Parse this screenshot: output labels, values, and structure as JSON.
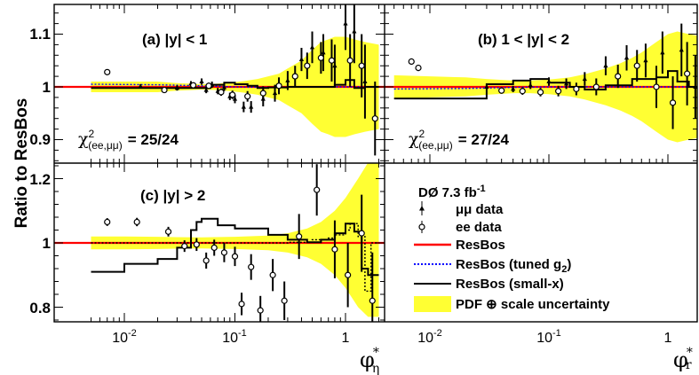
{
  "chart_data": [
    {
      "id": "a",
      "type": "scatter",
      "label": "(a) |y| < 1",
      "chi2_label": "(ee,μμ)",
      "chi2_value": "= 25/24",
      "xlim": [
        0.005,
        2.0
      ],
      "ylim": [
        0.86,
        1.15
      ],
      "log_x": true,
      "uncertainty_band": {
        "x": [
          0.005,
          0.01,
          0.02,
          0.03,
          0.04,
          0.05,
          0.07,
          0.09,
          0.12,
          0.16,
          0.2,
          0.25,
          0.3,
          0.4,
          0.5,
          0.6,
          0.7,
          0.8,
          1.0,
          1.2,
          1.5,
          2.0
        ],
        "lo": [
          0.99,
          0.99,
          0.99,
          0.993,
          0.994,
          0.995,
          0.994,
          0.992,
          0.989,
          0.985,
          0.98,
          0.975,
          0.965,
          0.95,
          0.93,
          0.915,
          0.91,
          0.905,
          0.905,
          0.91,
          0.915,
          0.92
        ],
        "hi": [
          1.01,
          1.01,
          1.01,
          1.007,
          1.006,
          1.005,
          1.006,
          1.008,
          1.011,
          1.015,
          1.02,
          1.025,
          1.035,
          1.05,
          1.07,
          1.085,
          1.09,
          1.095,
          1.095,
          1.09,
          1.085,
          1.08
        ]
      },
      "resbos": 1.0,
      "tuned_g2": {
        "x": [
          0.005,
          0.02,
          0.05,
          0.1,
          0.2,
          0.5,
          1.0,
          2.0
        ],
        "y": [
          1.005,
          1.004,
          1.002,
          1.0,
          0.999,
          1.0,
          1.0,
          1.0
        ]
      },
      "small_x": {
        "edges": [
          0.005,
          0.06,
          0.08,
          0.1,
          0.13,
          0.16,
          0.2,
          0.3,
          0.5,
          0.8,
          1.0,
          1.2,
          1.5,
          2.0
        ],
        "y": [
          0.998,
          1.004,
          1.008,
          1.005,
          1.002,
          0.998,
          0.999,
          1.0,
          1.0,
          1.004,
          1.013,
          0.998,
          1.0
        ]
      },
      "mm_data": [
        [
          0.014,
          1.001,
          0.004
        ],
        [
          0.03,
          0.998,
          0.005
        ],
        [
          0.04,
          1.006,
          0.005
        ],
        [
          0.05,
          1.01,
          0.006
        ],
        [
          0.055,
          0.994,
          0.006
        ],
        [
          0.062,
          1.004,
          0.006
        ],
        [
          0.07,
          0.992,
          0.006
        ],
        [
          0.08,
          0.999,
          0.007
        ],
        [
          0.09,
          0.982,
          0.007
        ],
        [
          0.1,
          0.977,
          0.008
        ],
        [
          0.12,
          0.962,
          0.01
        ],
        [
          0.14,
          0.962,
          0.011
        ],
        [
          0.18,
          0.977,
          0.014
        ],
        [
          0.23,
          0.988,
          0.016
        ],
        [
          0.3,
          1.012,
          0.018
        ],
        [
          0.4,
          1.052,
          0.022
        ],
        [
          0.5,
          1.075,
          0.03
        ],
        [
          0.63,
          1.065,
          0.035
        ],
        [
          0.8,
          1.04,
          0.04
        ],
        [
          1.0,
          1.12,
          0.05
        ],
        [
          1.2,
          1.105,
          0.06
        ],
        [
          1.5,
          1.01,
          0.07
        ]
      ],
      "ee_data": [
        [
          0.007,
          1.028,
          0.005
        ],
        [
          0.023,
          0.994,
          0.005
        ],
        [
          0.042,
          1.003,
          0.005
        ],
        [
          0.058,
          1.002,
          0.006
        ],
        [
          0.075,
          0.99,
          0.007
        ],
        [
          0.095,
          0.985,
          0.008
        ],
        [
          0.13,
          0.982,
          0.01
        ],
        [
          0.18,
          0.988,
          0.013
        ],
        [
          0.25,
          1.002,
          0.016
        ],
        [
          0.35,
          1.02,
          0.02
        ],
        [
          0.45,
          1.04,
          0.025
        ],
        [
          0.6,
          1.055,
          0.03
        ],
        [
          0.75,
          1.05,
          0.04
        ],
        [
          1.1,
          1.05,
          0.05
        ],
        [
          1.4,
          1.04,
          0.06
        ],
        [
          1.85,
          0.94,
          0.07
        ]
      ]
    },
    {
      "id": "b",
      "type": "scatter",
      "label": "(b) 1 < |y| < 2",
      "chi2_label": "(ee,μμ)",
      "chi2_value": "= 27/24",
      "xlim": [
        0.005,
        2.0
      ],
      "ylim": [
        0.86,
        1.15
      ],
      "log_x": true,
      "uncertainty_band": {
        "x": [
          0.005,
          0.01,
          0.02,
          0.03,
          0.05,
          0.07,
          0.1,
          0.15,
          0.2,
          0.3,
          0.4,
          0.5,
          0.6,
          0.8,
          1.0,
          1.2,
          1.5,
          2.0
        ],
        "lo": [
          0.978,
          0.98,
          0.982,
          0.985,
          0.988,
          0.988,
          0.986,
          0.982,
          0.976,
          0.965,
          0.955,
          0.945,
          0.935,
          0.915,
          0.9,
          0.895,
          0.9,
          0.905
        ],
        "hi": [
          1.022,
          1.02,
          1.018,
          1.015,
          1.012,
          1.012,
          1.014,
          1.018,
          1.024,
          1.035,
          1.045,
          1.055,
          1.065,
          1.085,
          1.1,
          1.105,
          1.1,
          1.095
        ]
      },
      "resbos": 1.0,
      "tuned_g2": {
        "x": [
          0.005,
          0.02,
          0.05,
          0.1,
          0.2,
          0.5,
          1.0,
          2.0
        ],
        "y": [
          0.996,
          0.997,
          0.999,
          1.0,
          1.0,
          1.0,
          1.0,
          1.0
        ]
      },
      "small_x": {
        "edges": [
          0.005,
          0.03,
          0.05,
          0.07,
          0.1,
          0.15,
          0.2,
          0.3,
          0.5,
          0.8,
          1.0,
          1.2,
          1.5,
          2.0
        ],
        "y": [
          0.978,
          1.005,
          1.012,
          1.015,
          1.008,
          1.0,
          0.995,
          1.003,
          1.015,
          1.018,
          1.03,
          1.01,
          1.0
        ]
      },
      "mm_data": [
        [
          0.03,
          1.0,
          0.005
        ],
        [
          0.05,
          0.996,
          0.006
        ],
        [
          0.07,
          1.003,
          0.007
        ],
        [
          0.1,
          1.01,
          0.008
        ],
        [
          0.14,
          1.006,
          0.01
        ],
        [
          0.2,
          1.015,
          0.013
        ],
        [
          0.3,
          1.04,
          0.018
        ],
        [
          0.45,
          1.055,
          0.024
        ],
        [
          0.65,
          1.05,
          0.032
        ],
        [
          0.9,
          1.065,
          0.04
        ],
        [
          1.3,
          1.07,
          0.05
        ],
        [
          1.7,
          1.0,
          0.06
        ]
      ],
      "ee_data": [
        [
          0.007,
          1.048,
          0.006
        ],
        [
          0.008,
          1.036,
          0.006
        ],
        [
          0.04,
          0.993,
          0.006
        ],
        [
          0.06,
          0.992,
          0.007
        ],
        [
          0.085,
          0.99,
          0.008
        ],
        [
          0.12,
          0.992,
          0.01
        ],
        [
          0.17,
          0.996,
          0.012
        ],
        [
          0.25,
          1.0,
          0.016
        ],
        [
          0.38,
          1.02,
          0.022
        ],
        [
          0.55,
          1.04,
          0.03
        ],
        [
          0.8,
          1.0,
          0.04
        ],
        [
          1.1,
          0.97,
          0.05
        ],
        [
          1.45,
          1.025,
          0.06
        ]
      ]
    },
    {
      "id": "c",
      "type": "scatter",
      "label": "(c) |y| > 2",
      "xlim": [
        0.005,
        2.0
      ],
      "ylim": [
        0.77,
        1.25
      ],
      "log_x": true,
      "uncertainty_band": {
        "x": [
          0.005,
          0.01,
          0.02,
          0.03,
          0.05,
          0.1,
          0.2,
          0.3,
          0.45,
          0.6,
          0.8,
          1.0,
          1.3,
          1.6,
          2.0
        ],
        "lo": [
          0.98,
          0.98,
          0.981,
          0.982,
          0.983,
          0.981,
          0.977,
          0.97,
          0.955,
          0.935,
          0.9,
          0.86,
          0.8,
          0.77,
          0.77
        ],
        "hi": [
          1.02,
          1.02,
          1.019,
          1.018,
          1.017,
          1.019,
          1.023,
          1.03,
          1.045,
          1.065,
          1.1,
          1.14,
          1.2,
          1.25,
          1.25
        ]
      },
      "resbos": 1.0,
      "tuned_g2": {
        "edges": [
          0.005,
          0.3,
          0.5,
          0.7,
          0.8,
          1.0,
          1.1,
          1.3,
          1.5,
          1.7,
          2.0
        ],
        "y": [
          1.0,
          1.002,
          1.01,
          1.015,
          1.025,
          1.04,
          1.06,
          1.02,
          0.85,
          1.0
        ]
      },
      "small_x": {
        "edges": [
          0.005,
          0.01,
          0.02,
          0.03,
          0.04,
          0.045,
          0.05,
          0.07,
          0.1,
          0.2,
          0.3,
          0.45,
          0.6,
          0.8,
          1.0,
          1.2,
          1.4,
          1.6,
          2.0
        ],
        "y": [
          0.91,
          0.935,
          0.95,
          0.985,
          1.04,
          1.065,
          1.075,
          1.055,
          1.045,
          1.025,
          1.01,
          1.002,
          1.01,
          1.03,
          1.06,
          1.035,
          0.92,
          0.9
        ]
      },
      "ee_data": [
        [
          0.007,
          1.065,
          0.012
        ],
        [
          0.013,
          1.065,
          0.013
        ],
        [
          0.025,
          1.035,
          0.015
        ],
        [
          0.035,
          0.99,
          0.018
        ],
        [
          0.045,
          0.995,
          0.02
        ],
        [
          0.055,
          0.945,
          0.025
        ],
        [
          0.065,
          0.985,
          0.025
        ],
        [
          0.08,
          0.97,
          0.03
        ],
        [
          0.1,
          0.958,
          0.03
        ],
        [
          0.115,
          0.81,
          0.035
        ],
        [
          0.14,
          0.925,
          0.04
        ],
        [
          0.17,
          0.79,
          0.045
        ],
        [
          0.22,
          0.9,
          0.05
        ],
        [
          0.28,
          0.82,
          0.06
        ],
        [
          0.38,
          1.02,
          0.07
        ],
        [
          0.55,
          1.165,
          0.08
        ],
        [
          0.8,
          0.98,
          0.09
        ],
        [
          1.05,
          0.9,
          0.1
        ],
        [
          1.4,
          1.03,
          0.12
        ],
        [
          1.75,
          0.82,
          0.15
        ]
      ]
    }
  ],
  "y_axis_title": "Ratio to ResBos",
  "y_ticks_top": [
    "0.9",
    "1",
    "1.1"
  ],
  "y_ticks_bottom": [
    "0.8",
    "1",
    "1.2"
  ],
  "x_ticks": [
    {
      "value": 0.01,
      "base": "10",
      "exp": "-2"
    },
    {
      "value": 0.1,
      "base": "10",
      "exp": "-1"
    },
    {
      "value": 1.0,
      "base": "1",
      "exp": ""
    }
  ],
  "x_title_left": {
    "main": "φ",
    "sup": "*",
    "sub": "η"
  },
  "x_title_right": {
    "main": "φ",
    "sup": "*",
    "sub": "r"
  },
  "legend": {
    "title_main": "DØ 7.3 fb",
    "title_sup": "-1",
    "items": [
      {
        "label": "μμ data"
      },
      {
        "label": "ee data"
      },
      {
        "label": "ResBos"
      },
      {
        "label": "ResBos (tuned g",
        "sub": "2",
        "after": ")"
      },
      {
        "label": "ResBos (small-x)"
      },
      {
        "label": "PDF ⊕ scale uncertainty"
      }
    ]
  },
  "colors": {
    "band": "#ffff33",
    "resbos": "#ff0000",
    "tuned": "#0000ff",
    "smallx": "#000000",
    "data": "#000000"
  }
}
